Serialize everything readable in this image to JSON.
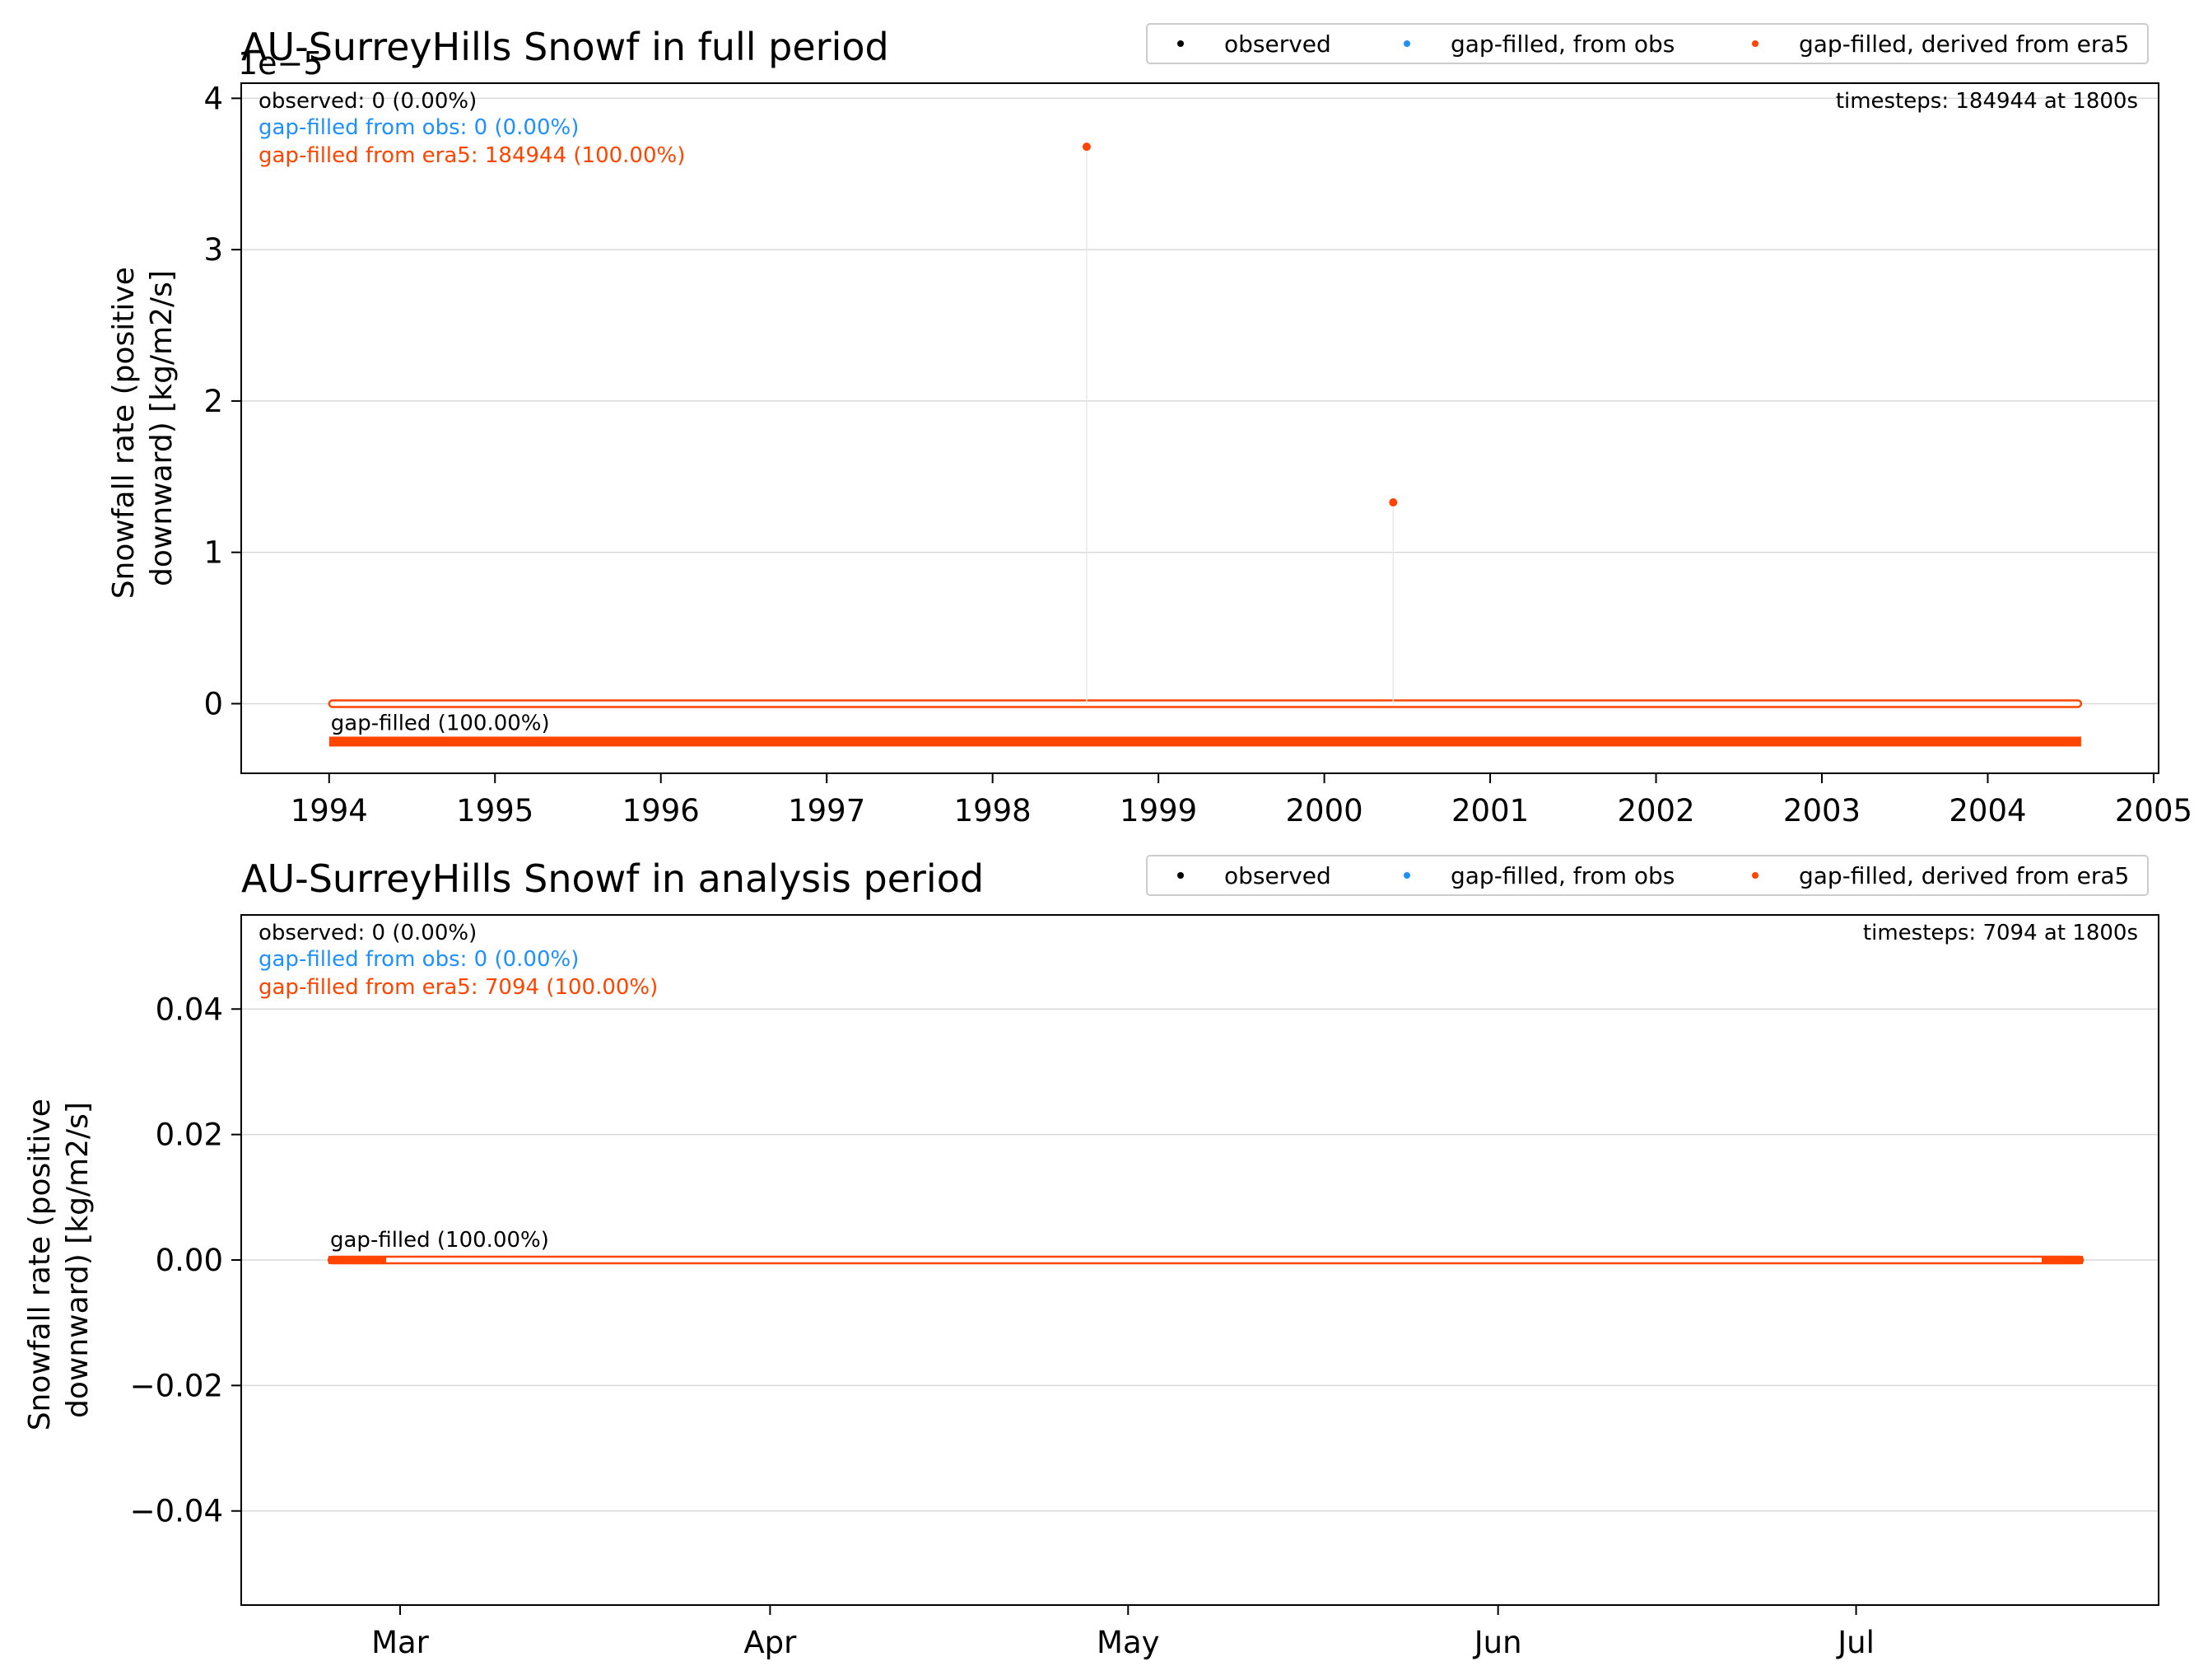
{
  "legend": {
    "observed": "observed",
    "from_obs": "gap-filled, from obs",
    "from_era5": "gap-filled, derived from era5"
  },
  "colors": {
    "observed": "#000000",
    "from_obs": "#1e90ff",
    "from_era5": "#ff4500",
    "grid": "#d9d9d9",
    "axes": "#000000"
  },
  "chart_data": [
    {
      "type": "scatter",
      "title": "AU-SurreyHills Snowf in full period",
      "ylabel_line1": "Snowfall rate (positive",
      "ylabel_line2": "downward) [kg/m2/s]",
      "xlabel": "",
      "offset_text": "1e−5",
      "x_ticks": [
        "1994",
        "1995",
        "1996",
        "1997",
        "1998",
        "1999",
        "2000",
        "2001",
        "2002",
        "2003",
        "2004",
        "2005"
      ],
      "y_ticks": [
        "0",
        "1",
        "2",
        "3",
        "4"
      ],
      "y_tick_values": [
        0,
        1,
        2,
        3,
        4
      ],
      "ylim": [
        -0.46,
        4.1
      ],
      "xlim_years": [
        1993.47,
        2005.03
      ],
      "grid": true,
      "legend_position": "top-right",
      "stats": {
        "observed": "observed: 0 (0.00%)",
        "from_obs": "gap-filled from obs: 0 (0.00%)",
        "from_era5": "gap-filled from era5: 184944 (100.00%)",
        "timesteps": "timesteps: 184944 at 1800s"
      },
      "bar_label": "gap-filled (100.00%)",
      "data_range": [
        "1994-01-01",
        "2004-07-25"
      ],
      "baseline_value": 0,
      "spikes": [
        {
          "x": "1998-07-27",
          "value": 3.68
        },
        {
          "x": "2000-06-01",
          "value": 1.33
        }
      ]
    },
    {
      "type": "scatter",
      "title": "AU-SurreyHills Snowf in analysis period",
      "ylabel_line1": "Snowfall rate (positive",
      "ylabel_line2": "downward) [kg/m2/s]",
      "xlabel": "",
      "x_ticks": [
        "Mar",
        "Apr",
        "May",
        "Jun",
        "Jul"
      ],
      "y_ticks": [
        "−0.04",
        "−0.02",
        "0.00",
        "0.02",
        "0.04"
      ],
      "y_tick_values": [
        -0.04,
        -0.02,
        0,
        0.02,
        0.04
      ],
      "ylim": [
        -0.055,
        0.055
      ],
      "grid": true,
      "legend_position": "top-right",
      "stats": {
        "observed": "observed: 0 (0.00%)",
        "from_obs": "gap-filled from obs: 0 (0.00%)",
        "from_era5": "gap-filled from era5: 7094 (100.00%)",
        "timesteps": "timesteps: 7094 at 1800s"
      },
      "bar_label": "gap-filled (100.00%)",
      "data_range": [
        "Feb 23",
        "Jul 20"
      ],
      "baseline_value": 0
    }
  ]
}
